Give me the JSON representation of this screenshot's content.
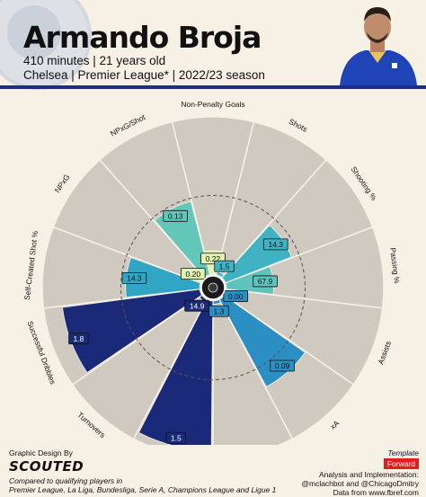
{
  "header": {
    "name": "Armando Broja",
    "line1": "410 minutes | 21 years old",
    "line2": "Chelsea | Premier League* | 2022/23 season"
  },
  "footer": {
    "design_label": "Graphic Design By",
    "brand": "SCOUTED",
    "comparison_line1": "Compared to qualifying players in",
    "comparison_line2": "Premier League, La Liga, Bundesliga, Serie A, Champions League and Ligue 1",
    "template_label": "Template",
    "position_badge": "Forward",
    "credit_line1": "Analysis and Implementation:",
    "credit_line2": "@mclachbot and @ChicagoDmitry",
    "credit_line3": "Data from www.fbref.com"
  },
  "colors": {
    "background": "#f7f1e5",
    "slice_bg": "#cfc9bf",
    "accent_navy": "#1d2f7a",
    "badge_red": "#e11d1d"
  },
  "chart_data": {
    "type": "polar-bar",
    "categories": [
      "Non-Penalty Goals",
      "Shots",
      "Shooting %",
      "Passing %",
      "Assists",
      "xA",
      "Open Play Shots Created\nfor Others",
      "Int+Tackles",
      "Turnovers",
      "Successful Dribbles",
      "Self-Created Shot %",
      "NPxG",
      "NPxG/Shot"
    ],
    "values": [
      0.22,
      1.5,
      14.3,
      67.9,
      0.0,
      0.09,
      1.3,
      1.5,
      14.9,
      1.8,
      14.3,
      0.2,
      0.13
    ],
    "value_labels": [
      "0.22",
      "1.5",
      "14.3",
      "67.9",
      "0.00",
      "0.09",
      "1.3",
      "1.5",
      "14.9",
      "1.8",
      "14.3",
      "0.20",
      "0.13"
    ],
    "percentiles": [
      15,
      2,
      45,
      30,
      0,
      63,
      2,
      95,
      2,
      88,
      47,
      2,
      48
    ],
    "colors": [
      "#dff2b0",
      "#3fb2c4",
      "#3fb2c4",
      "#5ec3bd",
      "#2b8fc3",
      "#2b8fc3",
      "#2b8fc3",
      "#1b2a78",
      "#1b2a78",
      "#1b2a78",
      "#30a6c4",
      "#dff2b0",
      "#62c6b8"
    ],
    "ylim": [
      0,
      100
    ]
  }
}
